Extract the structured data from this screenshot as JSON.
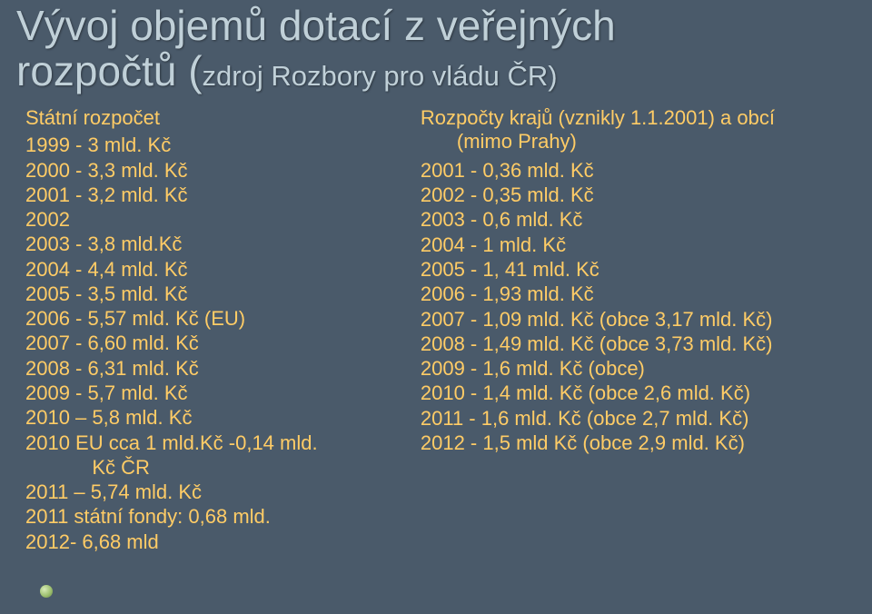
{
  "title_line1": "Vývoj objemů dotací z veřejných",
  "title_line2": "rozpočtů (",
  "title_sub": "zdroj Rozbory  pro vládu ČR)",
  "left": {
    "heading": "Státní rozpočet",
    "lines": [
      "1999 - 3 mld. Kč",
      "2000 - 3,3 mld. Kč",
      "2001 - 3,2 mld. Kč",
      "2002",
      "2003 - 3,8 mld.Kč",
      "2004 - 4,4 mld. Kč",
      "2005 - 3,5 mld. Kč",
      "2006 - 5,57 mld. Kč (EU)",
      "2007 - 6,60 mld. Kč",
      "2008 - 6,31 mld. Kč",
      "2009 - 5,7 mld. Kč",
      "2010 – 5,8 mld. Kč",
      "2010 EU cca 1 mld.Kč -0,14 mld.",
      "            Kč ČR",
      "2011 – 5,74 mld. Kč",
      "2011 státní fondy: 0,68 mld.",
      "2012- 6,68 mld"
    ]
  },
  "right": {
    "heading_l1": "Rozpočty krajů (vznikly 1.1.2001) a obcí",
    "heading_l2": "(mimo Prahy)",
    "lines": [
      "2001 - 0,36 mld. Kč",
      "2002 - 0,35 mld. Kč",
      "2003 - 0,6 mld. Kč",
      "2004 - 1 mld. Kč",
      "2005 - 1, 41 mld. Kč",
      "2006 - 1,93 mld. Kč",
      "2007 - 1,09 mld. Kč (obce 3,17 mld. Kč)",
      "2008 - 1,49 mld. Kč (obce 3,73 mld. Kč)",
      "2009 - 1,6 mld. Kč (obce)",
      "2010 - 1,4 mld. Kč (obce 2,6 mld. Kč)",
      "2011 - 1,6 mld. Kč (obce 2,7 mld. Kč)",
      "2012 - 1,5 mld Kč (obce 2,9 mld. Kč)"
    ]
  },
  "colors": {
    "background": "#4a5a6a",
    "title": "#c0d0d8",
    "body": "#ffcc66"
  }
}
